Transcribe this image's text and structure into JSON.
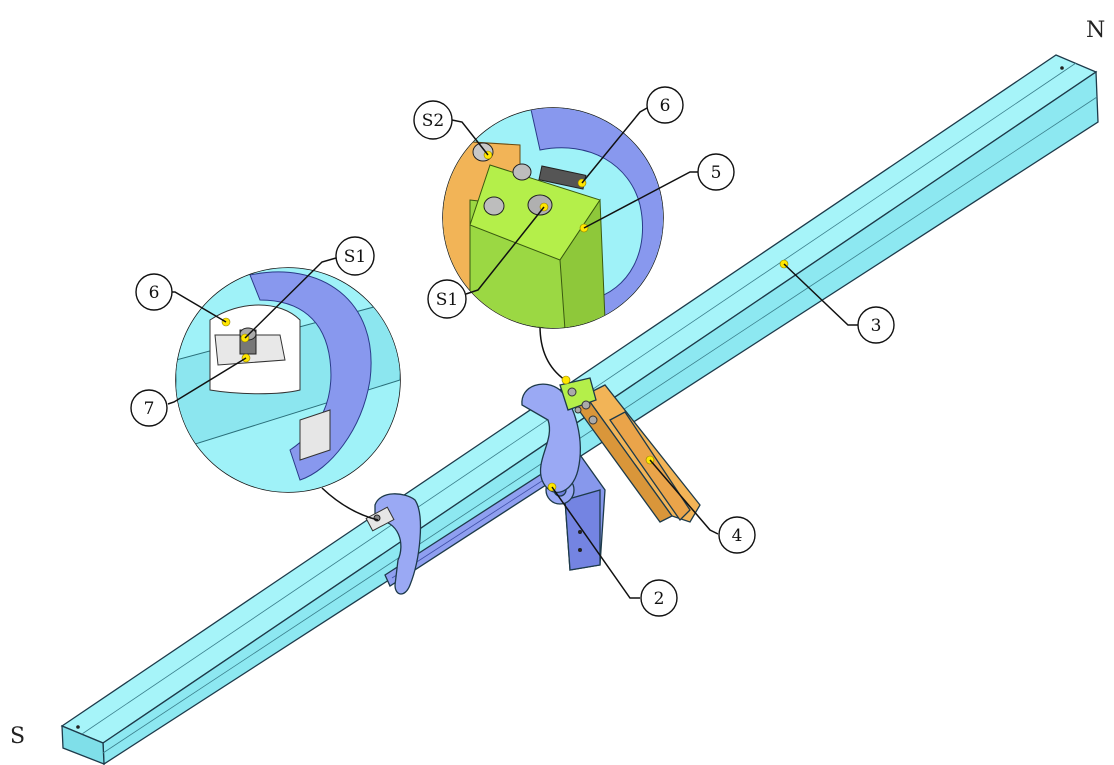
{
  "compass": {
    "north": "N",
    "south": "S"
  },
  "callouts": {
    "c2": "2",
    "c3": "3",
    "c4": "4",
    "c5": "5",
    "c6a": "6",
    "c6b": "6",
    "c7": "7",
    "s1a": "S1",
    "s1b": "S1",
    "s2": "S2"
  },
  "colors": {
    "tube": "#9ff2f8",
    "tube_dark": "#67d9e6",
    "clamp": "#9aa9f4",
    "clamp_dark": "#6f80e0",
    "bracket": "#f2b457",
    "plate": "#b4ef4a",
    "marker": "#ffe600"
  }
}
